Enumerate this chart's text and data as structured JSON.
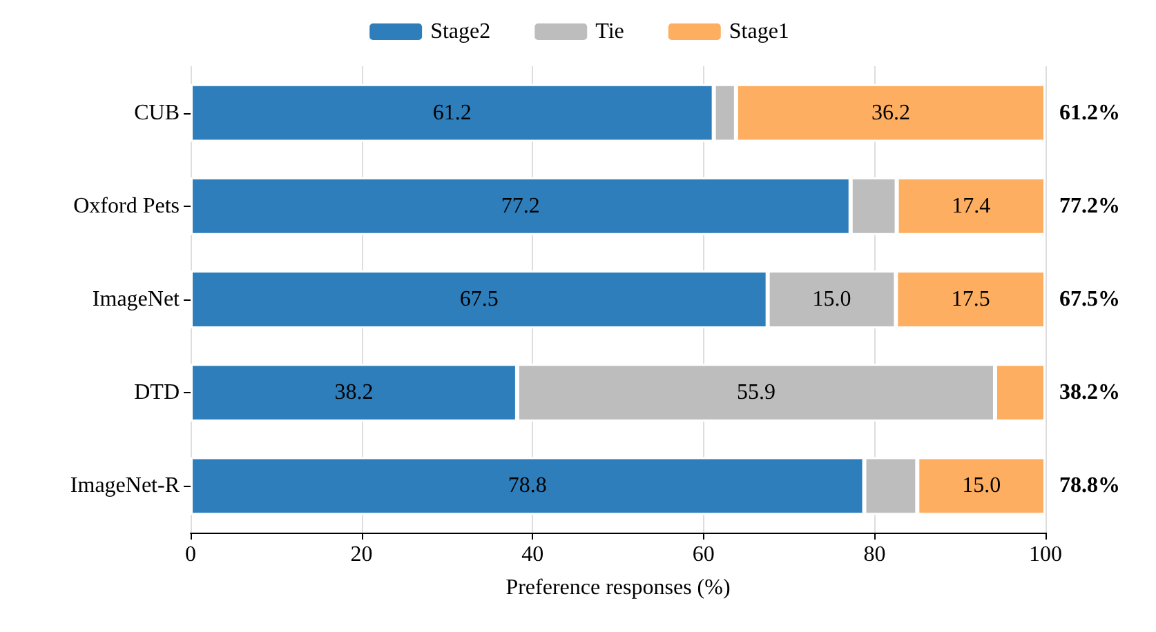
{
  "chart_data": {
    "type": "bar",
    "orientation": "horizontal",
    "stacked": true,
    "xlabel": "Preference responses (%)",
    "categories": [
      "CUB",
      "Oxford Pets",
      "ImageNet",
      "DTD",
      "ImageNet-R"
    ],
    "series": [
      {
        "name": "Stage2",
        "color": "#2e7ebb",
        "values": [
          61.2,
          77.2,
          67.5,
          38.2,
          78.8
        ],
        "value_labels": [
          "61.2",
          "77.2",
          "67.5",
          "38.2",
          "78.8"
        ]
      },
      {
        "name": "Tie",
        "color": "#bdbdbd",
        "values": [
          2.6,
          5.4,
          15.0,
          55.9,
          6.2
        ],
        "value_labels": [
          null,
          null,
          "15.0",
          "55.9",
          null
        ]
      },
      {
        "name": "Stage1",
        "color": "#fdae61",
        "values": [
          36.2,
          17.4,
          17.5,
          5.9,
          15.0
        ],
        "value_labels": [
          "36.2",
          "17.4",
          "17.5",
          null,
          "15.0"
        ]
      }
    ],
    "xlim": [
      0,
      100
    ],
    "xticks": [
      0,
      20,
      40,
      60,
      80,
      100
    ],
    "grid": "x",
    "legend": "top",
    "annotations": [
      "61.2%",
      "77.2%",
      "67.5%",
      "38.2%",
      "78.8%"
    ]
  }
}
